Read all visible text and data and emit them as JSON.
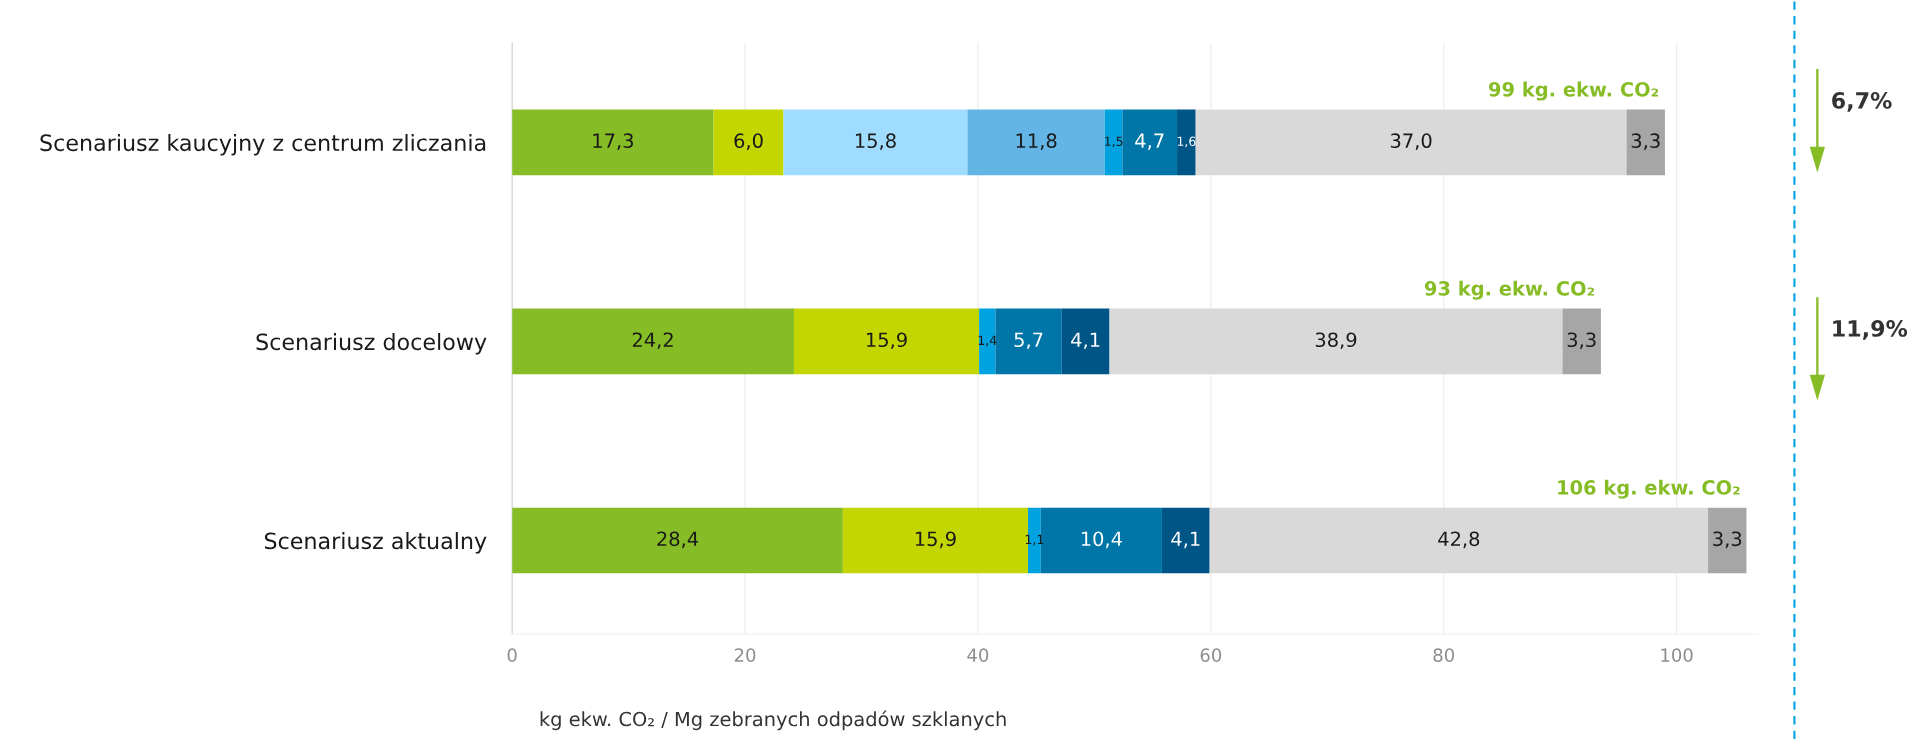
{
  "chart_data": {
    "type": "bar",
    "orientation": "horizontal",
    "stacked": true,
    "categories": [
      "Scenariusz kaucyjny z centrum zliczania",
      "Scenariusz docelowy",
      "Scenariusz aktualny"
    ],
    "series": [
      {
        "color": "#86bc25",
        "values": [
          17.3,
          24.2,
          28.4
        ],
        "value_labels": [
          "17,3",
          "24,2",
          "28,4"
        ]
      },
      {
        "color": "#c4d600",
        "values": [
          6.0,
          15.9,
          15.9
        ],
        "value_labels": [
          "6,0",
          "15,9",
          "15,9"
        ]
      },
      {
        "color": "#a0dcff",
        "values": [
          15.8,
          null,
          null
        ],
        "value_labels": [
          "15,8",
          null,
          null
        ]
      },
      {
        "color": "#62b5e5",
        "values": [
          11.8,
          null,
          null
        ],
        "value_labels": [
          "11,8",
          null,
          null
        ]
      },
      {
        "color": "#00a3e0",
        "values": [
          1.5,
          1.4,
          1.1
        ],
        "value_labels": [
          "1,5",
          "1,4",
          "1,1"
        ]
      },
      {
        "color": "#0076a8",
        "values": [
          4.7,
          5.7,
          10.4
        ],
        "value_labels": [
          "4,7",
          "5,7",
          "10,4"
        ]
      },
      {
        "color": "#005587",
        "values": [
          1.6,
          4.1,
          4.1
        ],
        "value_labels": [
          "1,6",
          "4,1",
          "4,1"
        ]
      },
      {
        "color": "#d9d9d9",
        "values": [
          37.0,
          38.9,
          42.8
        ],
        "value_labels": [
          "37,0",
          "38,9",
          "42,8"
        ]
      },
      {
        "color": "#a6a6a6",
        "values": [
          3.3,
          3.3,
          3.3
        ],
        "value_labels": [
          "3,3",
          "3,3",
          "3,3"
        ]
      }
    ],
    "totals": [
      "99 kg. ekw. CO₂",
      "93 kg. ekw. CO₂",
      "106 kg. ekw. CO₂"
    ],
    "xlim": [
      0,
      107
    ],
    "xticks": [
      0,
      20,
      40,
      60,
      80,
      100
    ],
    "xlabel": "kg ekw. CO₂ / Mg zebranych odpadów szklanych",
    "grid": "x",
    "annotations": [
      "6,7%",
      "11,9%"
    ]
  }
}
